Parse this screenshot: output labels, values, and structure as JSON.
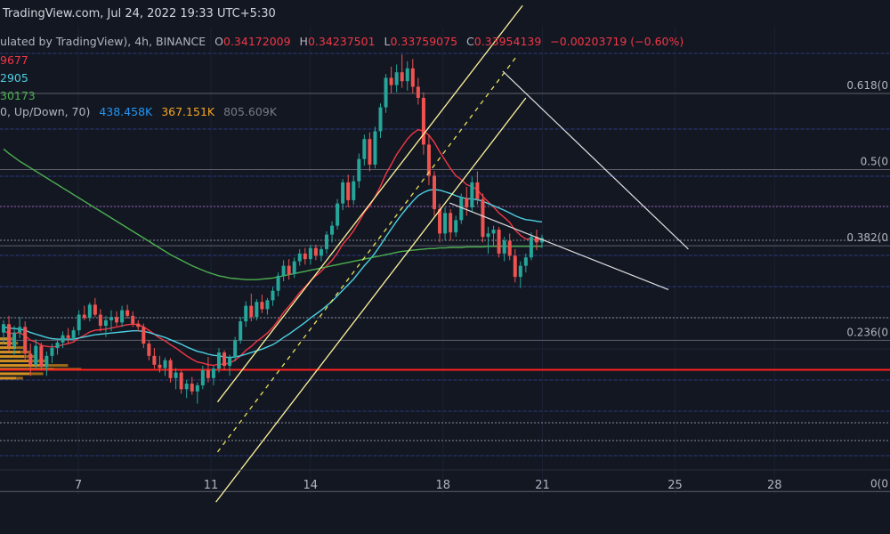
{
  "header": {
    "site": "TradingView.com, Jul 24, 2022 19:33 UTC+5:30",
    "symbol_desc": "ulated by TradingView), 4h, BINANCE",
    "o_label": "O",
    "o_val": "0.34172009",
    "h_label": "H",
    "h_val": "0.34237501",
    "l_label": "L",
    "l_val": "0.33759075",
    "c_label": "C",
    "c_val": "0.33954139",
    "change": "−0.00203719 (−0.60%)"
  },
  "indicators": {
    "ma1": "9677",
    "ma2": "2905",
    "ma3": "30173",
    "vp_label": "0, Up/Down, 70)",
    "vp_up": "438.458K",
    "vp_down": "367.151K",
    "vp_total": "805.609K"
  },
  "colors": {
    "background": "#131722",
    "up_candle": "#26a69a",
    "down_candle": "#ef5350",
    "ma_red": "#f23645",
    "ma_cyan": "#4dd0e1",
    "ma_green": "#4caf50",
    "channel": "#fff59d",
    "wedge": "#e0e0e0",
    "support": "#ff1f1f",
    "volume_profile": "#f5a623"
  },
  "chart_data": {
    "type": "candlestick",
    "x_tick_labels": [
      "7",
      "11",
      "14",
      "18",
      "21",
      "25",
      "28"
    ],
    "fib_levels": [
      {
        "label": "0.618(0",
        "value": 0.372
      },
      {
        "label": "0.5(0",
        "value": 0.3583
      },
      {
        "label": "0.382(0",
        "value": 0.3446
      },
      {
        "label": "0.236(0",
        "value": 0.3276
      },
      {
        "label": "0(0",
        "value": 0.3004
      }
    ],
    "ylim": [
      0.2998,
      0.384
    ],
    "support_level": 0.3223,
    "ohlc": [
      [
        0.329,
        0.3312,
        0.327,
        0.3305
      ],
      [
        0.3305,
        0.332,
        0.3255,
        0.3265
      ],
      [
        0.3265,
        0.3302,
        0.325,
        0.329
      ],
      [
        0.329,
        0.3318,
        0.328,
        0.33
      ],
      [
        0.33,
        0.331,
        0.324,
        0.3252
      ],
      [
        0.3252,
        0.327,
        0.3212,
        0.3232
      ],
      [
        0.3232,
        0.3278,
        0.3225,
        0.3266
      ],
      [
        0.3266,
        0.3272,
        0.3222,
        0.3228
      ],
      [
        0.3228,
        0.3256,
        0.3212,
        0.3248
      ],
      [
        0.3248,
        0.327,
        0.3235,
        0.3262
      ],
      [
        0.3262,
        0.328,
        0.325,
        0.3272
      ],
      [
        0.3272,
        0.3292,
        0.3262,
        0.3285
      ],
      [
        0.3285,
        0.3298,
        0.327,
        0.328
      ],
      [
        0.328,
        0.33,
        0.3275,
        0.3294
      ],
      [
        0.3294,
        0.333,
        0.3285,
        0.3322
      ],
      [
        0.3322,
        0.3338,
        0.3312,
        0.3316
      ],
      [
        0.3316,
        0.3344,
        0.331,
        0.334
      ],
      [
        0.334,
        0.3352,
        0.3318,
        0.3322
      ],
      [
        0.3322,
        0.3332,
        0.3292,
        0.3302
      ],
      [
        0.3302,
        0.332,
        0.3282,
        0.3312
      ],
      [
        0.3312,
        0.333,
        0.3292,
        0.3318
      ],
      [
        0.3318,
        0.3328,
        0.3302,
        0.3308
      ],
      [
        0.3308,
        0.3338,
        0.33,
        0.333
      ],
      [
        0.333,
        0.334,
        0.3315,
        0.332
      ],
      [
        0.332,
        0.3328,
        0.33,
        0.3306
      ],
      [
        0.3306,
        0.3312,
        0.3292,
        0.33
      ],
      [
        0.33,
        0.3306,
        0.3262,
        0.327
      ],
      [
        0.327,
        0.3276,
        0.324,
        0.3248
      ],
      [
        0.3248,
        0.3262,
        0.3225,
        0.3232
      ],
      [
        0.3232,
        0.3248,
        0.3218,
        0.3226
      ],
      [
        0.3226,
        0.3245,
        0.3212,
        0.324
      ],
      [
        0.324,
        0.3244,
        0.32,
        0.3208
      ],
      [
        0.3208,
        0.3226,
        0.3188,
        0.3218
      ],
      [
        0.3218,
        0.3222,
        0.318,
        0.3188
      ],
      [
        0.3188,
        0.3205,
        0.3172,
        0.3198
      ],
      [
        0.3198,
        0.321,
        0.3178,
        0.3184
      ],
      [
        0.3184,
        0.32,
        0.3162,
        0.3195
      ],
      [
        0.3195,
        0.323,
        0.3188,
        0.3222
      ],
      [
        0.3222,
        0.3246,
        0.32,
        0.3208
      ],
      [
        0.3208,
        0.323,
        0.3195,
        0.3225
      ],
      [
        0.3225,
        0.3262,
        0.3218,
        0.3254
      ],
      [
        0.3254,
        0.3258,
        0.3222,
        0.323
      ],
      [
        0.323,
        0.325,
        0.3212,
        0.3245
      ],
      [
        0.3245,
        0.3282,
        0.3238,
        0.3276
      ],
      [
        0.3276,
        0.3318,
        0.327,
        0.331
      ],
      [
        0.331,
        0.3346,
        0.33,
        0.3338
      ],
      [
        0.3338,
        0.336,
        0.331,
        0.3318
      ],
      [
        0.3318,
        0.335,
        0.3312,
        0.3345
      ],
      [
        0.3345,
        0.3358,
        0.3325,
        0.3332
      ],
      [
        0.3332,
        0.3352,
        0.3322,
        0.3348
      ],
      [
        0.3348,
        0.3372,
        0.3338,
        0.3365
      ],
      [
        0.3365,
        0.3398,
        0.3355,
        0.3392
      ],
      [
        0.3392,
        0.342,
        0.3382,
        0.341
      ],
      [
        0.341,
        0.3422,
        0.3385,
        0.3395
      ],
      [
        0.3395,
        0.3425,
        0.3388,
        0.3418
      ],
      [
        0.3418,
        0.344,
        0.341,
        0.3432
      ],
      [
        0.3432,
        0.3442,
        0.3412,
        0.3422
      ],
      [
        0.3422,
        0.3448,
        0.3412,
        0.3442
      ],
      [
        0.3442,
        0.3448,
        0.342,
        0.3428
      ],
      [
        0.3428,
        0.3446,
        0.3418,
        0.344
      ],
      [
        0.344,
        0.3472,
        0.3432,
        0.3466
      ],
      [
        0.3466,
        0.349,
        0.3452,
        0.3482
      ],
      [
        0.3482,
        0.353,
        0.3475,
        0.3522
      ],
      [
        0.3522,
        0.3566,
        0.351,
        0.356
      ],
      [
        0.356,
        0.3574,
        0.3515,
        0.3528
      ],
      [
        0.3528,
        0.3572,
        0.352,
        0.3562
      ],
      [
        0.3562,
        0.3612,
        0.355,
        0.3602
      ],
      [
        0.3602,
        0.3646,
        0.359,
        0.3638
      ],
      [
        0.3638,
        0.365,
        0.358,
        0.3592
      ],
      [
        0.3592,
        0.366,
        0.3585,
        0.3652
      ],
      [
        0.3652,
        0.3702,
        0.364,
        0.3695
      ],
      [
        0.3695,
        0.3755,
        0.3685,
        0.3748
      ],
      [
        0.3748,
        0.3768,
        0.372,
        0.3735
      ],
      [
        0.3735,
        0.3772,
        0.3722,
        0.3758
      ],
      [
        0.3758,
        0.379,
        0.373,
        0.3742
      ],
      [
        0.3742,
        0.3778,
        0.3725,
        0.3765
      ],
      [
        0.3765,
        0.3782,
        0.372,
        0.3732
      ],
      [
        0.3732,
        0.3748,
        0.37,
        0.3712
      ],
      [
        0.3712,
        0.3722,
        0.361,
        0.3628
      ],
      [
        0.3628,
        0.3645,
        0.3555,
        0.3572
      ],
      [
        0.3572,
        0.358,
        0.35,
        0.3512
      ],
      [
        0.3512,
        0.3522,
        0.3452,
        0.3468
      ],
      [
        0.3468,
        0.3515,
        0.3455,
        0.3505
      ],
      [
        0.3505,
        0.3512,
        0.3455,
        0.347
      ],
      [
        0.347,
        0.35,
        0.3462,
        0.3492
      ],
      [
        0.3492,
        0.354,
        0.3485,
        0.3532
      ],
      [
        0.3532,
        0.3552,
        0.35,
        0.3515
      ],
      [
        0.3515,
        0.357,
        0.3508,
        0.356
      ],
      [
        0.356,
        0.358,
        0.352,
        0.353
      ],
      [
        0.353,
        0.354,
        0.3452,
        0.3462
      ],
      [
        0.3462,
        0.348,
        0.3432,
        0.3468
      ],
      [
        0.3468,
        0.3482,
        0.3445,
        0.3475
      ],
      [
        0.3475,
        0.348,
        0.3425,
        0.3432
      ],
      [
        0.3432,
        0.3462,
        0.3418,
        0.3455
      ],
      [
        0.3455,
        0.3468,
        0.342,
        0.3428
      ],
      [
        0.3428,
        0.344,
        0.338,
        0.339
      ],
      [
        0.339,
        0.3418,
        0.337,
        0.341
      ],
      [
        0.341,
        0.3432,
        0.3398,
        0.3425
      ],
      [
        0.3425,
        0.347,
        0.342,
        0.3462
      ],
      [
        0.3462,
        0.3475,
        0.3438,
        0.3452
      ],
      [
        0.3452,
        0.3466,
        0.3442,
        0.346
      ]
    ],
    "moving_averages": [
      {
        "name": "9677",
        "color": "#f23645",
        "values": [
          0.3292,
          0.3289,
          0.3288,
          0.329,
          0.3284,
          0.3276,
          0.3273,
          0.3267,
          0.3265,
          0.3264,
          0.3265,
          0.3268,
          0.327,
          0.3273,
          0.328,
          0.3285,
          0.3291,
          0.3294,
          0.3295,
          0.3296,
          0.3298,
          0.33,
          0.3302,
          0.3304,
          0.3305,
          0.3304,
          0.33,
          0.3294,
          0.3287,
          0.328,
          0.3275,
          0.3268,
          0.3262,
          0.3255,
          0.3248,
          0.3242,
          0.3237,
          0.3235,
          0.3232,
          0.3231,
          0.3233,
          0.3233,
          0.3235,
          0.324,
          0.3248,
          0.3258,
          0.3265,
          0.3274,
          0.3281,
          0.3289,
          0.3299,
          0.3312,
          0.3326,
          0.3337,
          0.3349,
          0.3362,
          0.3372,
          0.3383,
          0.3392,
          0.34,
          0.341,
          0.342,
          0.3433,
          0.3449,
          0.346,
          0.3473,
          0.3489,
          0.3506,
          0.3518,
          0.3534,
          0.3553,
          0.3575,
          0.3592,
          0.361,
          0.3624,
          0.3638,
          0.3648,
          0.3655,
          0.3652,
          0.3645,
          0.3632,
          0.3615,
          0.36,
          0.3585,
          0.3572,
          0.3565,
          0.3556,
          0.3552,
          0.3547,
          0.3535,
          0.3525,
          0.3516,
          0.3505,
          0.3497,
          0.3488,
          0.3474,
          0.3465,
          0.3458,
          0.3458,
          0.3457,
          0.3457
        ]
      },
      {
        "name": "2905",
        "color": "#4dd0e1",
        "values": [
          0.33,
          0.3298,
          0.3297,
          0.3296,
          0.3294,
          0.329,
          0.3287,
          0.3284,
          0.3281,
          0.3279,
          0.3278,
          0.3278,
          0.3278,
          0.3278,
          0.328,
          0.3282,
          0.3284,
          0.3286,
          0.3287,
          0.3288,
          0.3289,
          0.329,
          0.3291,
          0.3292,
          0.3293,
          0.3293,
          0.3292,
          0.329,
          0.3287,
          0.3284,
          0.3281,
          0.3277,
          0.3273,
          0.3269,
          0.3264,
          0.326,
          0.3256,
          0.3254,
          0.3251,
          0.3249,
          0.3248,
          0.3246,
          0.3245,
          0.3246,
          0.3248,
          0.3251,
          0.3254,
          0.3257,
          0.326,
          0.3264,
          0.3268,
          0.3274,
          0.3281,
          0.3287,
          0.3294,
          0.3301,
          0.3308,
          0.3316,
          0.3323,
          0.333,
          0.3338,
          0.3346,
          0.3356,
          0.3366,
          0.3376,
          0.3386,
          0.3398,
          0.341,
          0.3421,
          0.3433,
          0.3447,
          0.3462,
          0.3476,
          0.349,
          0.3503,
          0.3515,
          0.3526,
          0.3536,
          0.3542,
          0.3546,
          0.3547,
          0.3546,
          0.3543,
          0.354,
          0.3536,
          0.3533,
          0.3531,
          0.353,
          0.3529,
          0.3526,
          0.3522,
          0.3518,
          0.3514,
          0.351,
          0.3505,
          0.35,
          0.3496,
          0.3493,
          0.3492,
          0.349,
          0.3489
        ]
      },
      {
        "name": "30173",
        "color": "#4caf50",
        "values": [
          0.362,
          0.3612,
          0.3605,
          0.3598,
          0.3592,
          0.3586,
          0.358,
          0.3574,
          0.3568,
          0.3562,
          0.3556,
          0.355,
          0.3544,
          0.3538,
          0.3532,
          0.3526,
          0.352,
          0.3514,
          0.3508,
          0.3502,
          0.3496,
          0.349,
          0.3484,
          0.3478,
          0.3472,
          0.3466,
          0.346,
          0.3454,
          0.3448,
          0.3442,
          0.3436,
          0.343,
          0.3425,
          0.342,
          0.3415,
          0.341,
          0.3406,
          0.3402,
          0.3398,
          0.3395,
          0.3392,
          0.339,
          0.3388,
          0.3387,
          0.3386,
          0.3385,
          0.3385,
          0.3385,
          0.3386,
          0.3387,
          0.3388,
          0.339,
          0.3392,
          0.3394,
          0.3396,
          0.3398,
          0.34,
          0.3402,
          0.3404,
          0.3406,
          0.3408,
          0.341,
          0.3412,
          0.3414,
          0.3416,
          0.3418,
          0.342,
          0.3422,
          0.3424,
          0.3426,
          0.3428,
          0.343,
          0.3432,
          0.3434,
          0.3436,
          0.3437,
          0.3438,
          0.3439,
          0.344,
          0.3441,
          0.3441,
          0.3442,
          0.3442,
          0.3443,
          0.3443,
          0.3443,
          0.3444,
          0.3444,
          0.3444,
          0.3444,
          0.3445,
          0.3445,
          0.3445,
          0.3445,
          0.3445,
          0.3445,
          0.3445,
          0.3445,
          0.3445,
          0.3445,
          0.3445
        ]
      }
    ],
    "volume_profile": [
      {
        "price": 0.3278,
        "up": 0.18,
        "down": 0.14
      },
      {
        "price": 0.327,
        "up": 0.22,
        "down": 0.18
      },
      {
        "price": 0.3262,
        "up": 0.3,
        "down": 0.22
      },
      {
        "price": 0.3254,
        "up": 0.38,
        "down": 0.3
      },
      {
        "price": 0.3246,
        "up": 0.45,
        "down": 0.35
      },
      {
        "price": 0.3238,
        "up": 0.6,
        "down": 0.42
      },
      {
        "price": 0.323,
        "up": 0.85,
        "down": 0.65
      },
      {
        "price": 0.3223,
        "up": 1.0,
        "down": 0.8
      },
      {
        "price": 0.3215,
        "up": 0.55,
        "down": 0.4
      },
      {
        "price": 0.3207,
        "up": 0.3,
        "down": 0.2
      }
    ],
    "annotations": {
      "channel_lower": [
        [
          11.15,
          0.2985
        ],
        [
          20.5,
          0.3712
        ]
      ],
      "channel_upper": [
        [
          11.2,
          0.3165
        ],
        [
          20.4,
          0.3878
        ]
      ],
      "channel_mid": [
        [
          11.2,
          0.3075
        ],
        [
          20.2,
          0.3785
        ]
      ],
      "wedge_upper": [
        [
          19.8,
          0.376
        ],
        [
          25.4,
          0.344
        ]
      ],
      "wedge_lower": [
        [
          18.2,
          0.3523
        ],
        [
          24.8,
          0.3367
        ]
      ]
    }
  }
}
